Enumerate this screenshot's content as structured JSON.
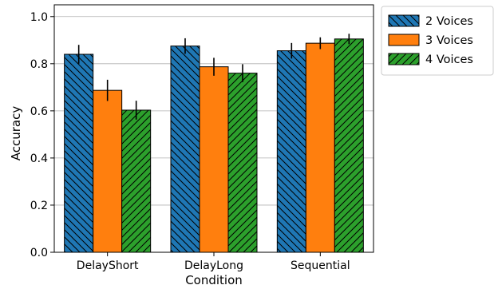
{
  "chart_data": {
    "type": "bar",
    "categories": [
      "DelayShort",
      "DelayLong",
      "Sequential"
    ],
    "series": [
      {
        "name": "2 Voices",
        "values": [
          0.84,
          0.875,
          0.855
        ],
        "errors": [
          0.04,
          0.033,
          0.033
        ],
        "color": "#1f77b4",
        "hatch": "backslash"
      },
      {
        "name": "3 Voices",
        "values": [
          0.687,
          0.787,
          0.887
        ],
        "errors": [
          0.045,
          0.038,
          0.025
        ],
        "color": "#ff7f0e",
        "hatch": "none"
      },
      {
        "name": "4 Voices",
        "values": [
          0.603,
          0.76,
          0.905
        ],
        "errors": [
          0.04,
          0.038,
          0.022
        ],
        "color": "#2ca02c",
        "hatch": "slash"
      }
    ],
    "xlabel": "Condition",
    "ylabel": "Accuracy",
    "ylim": [
      0,
      1.05
    ],
    "yticks": [
      0.0,
      0.2,
      0.4,
      0.6,
      0.8,
      1.0
    ],
    "ytick_labels": [
      "0.0",
      "0.2",
      "0.4",
      "0.6",
      "0.8",
      "1.0"
    ],
    "grid": "y",
    "legend_position": "outside-top-right"
  }
}
